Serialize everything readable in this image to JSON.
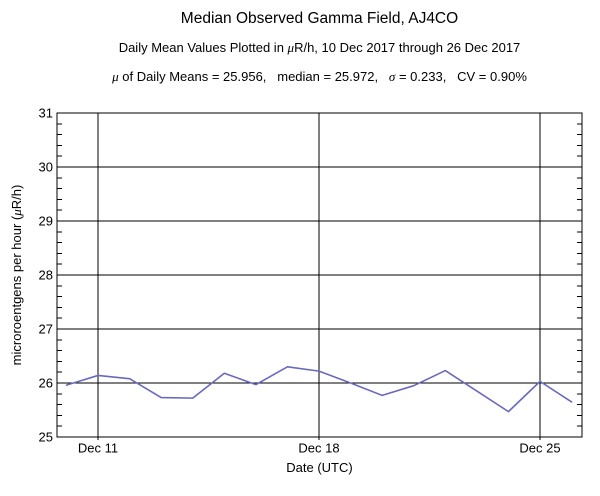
{
  "header": {
    "subtitle_parts": [
      {
        "text": "Daily Mean Values Plotted in "
      },
      {
        "text": "μ",
        "italic": true
      },
      {
        "text": "R/h, 10 Dec 2017 through 26 Dec 2017"
      }
    ],
    "stats_parts": [
      {
        "text": "μ",
        "italic": true
      },
      {
        "text": " of Daily Means = 25.956,   "
      },
      {
        "text": "median = 25.972,   "
      },
      {
        "text": "σ",
        "italic": true
      },
      {
        "text": " = 0.233,   "
      },
      {
        "text": "CV = 0.90%"
      }
    ]
  },
  "chart_data": {
    "type": "line",
    "title": "Median Observed Gamma Field, AJ4CO",
    "subtitle": "Daily Mean Values Plotted in μR/h, 10 Dec 2017 through 26 Dec 2017",
    "stats_line": "μ of Daily Means = 25.956,   median = 25.972,   σ = 0.233,   CV = 0.90%",
    "xlabel": "Date (UTC)",
    "ylabel": "microroentgens per hour (μR/h)",
    "ylabel_parts": [
      {
        "text": "microroentgens per hour ("
      },
      {
        "text": "μ",
        "italic": true
      },
      {
        "text": "R/h)"
      }
    ],
    "month": "Dec 2017",
    "x_days": [
      10,
      11,
      12,
      13,
      14,
      15,
      16,
      17,
      18,
      19,
      20,
      21,
      22,
      23,
      24,
      25,
      26
    ],
    "values": [
      25.96,
      26.14,
      26.08,
      25.73,
      25.72,
      26.18,
      25.97,
      26.3,
      26.22,
      26.0,
      25.77,
      25.95,
      26.23,
      25.85,
      25.47,
      26.03,
      25.65
    ],
    "x_tick_labels": [
      {
        "day": 11,
        "label": "Dec 11"
      },
      {
        "day": 18,
        "label": "Dec 18"
      },
      {
        "day": 25,
        "label": "Dec 25"
      }
    ],
    "y_ticks": [
      25,
      26,
      27,
      28,
      29,
      30,
      31
    ],
    "y_minor_step": 0.2,
    "ylim": [
      25,
      31
    ],
    "xlim_days": [
      9.7,
      26.33
    ],
    "grid": true,
    "legend": "none",
    "stats_values": {
      "mean": 25.956,
      "median": 25.972,
      "sigma": 0.233,
      "cv_percent": 0.9
    },
    "line_color": "#6969be",
    "frame_color": "#000000",
    "text_color": "#000000",
    "background_color": "#ffffff"
  }
}
